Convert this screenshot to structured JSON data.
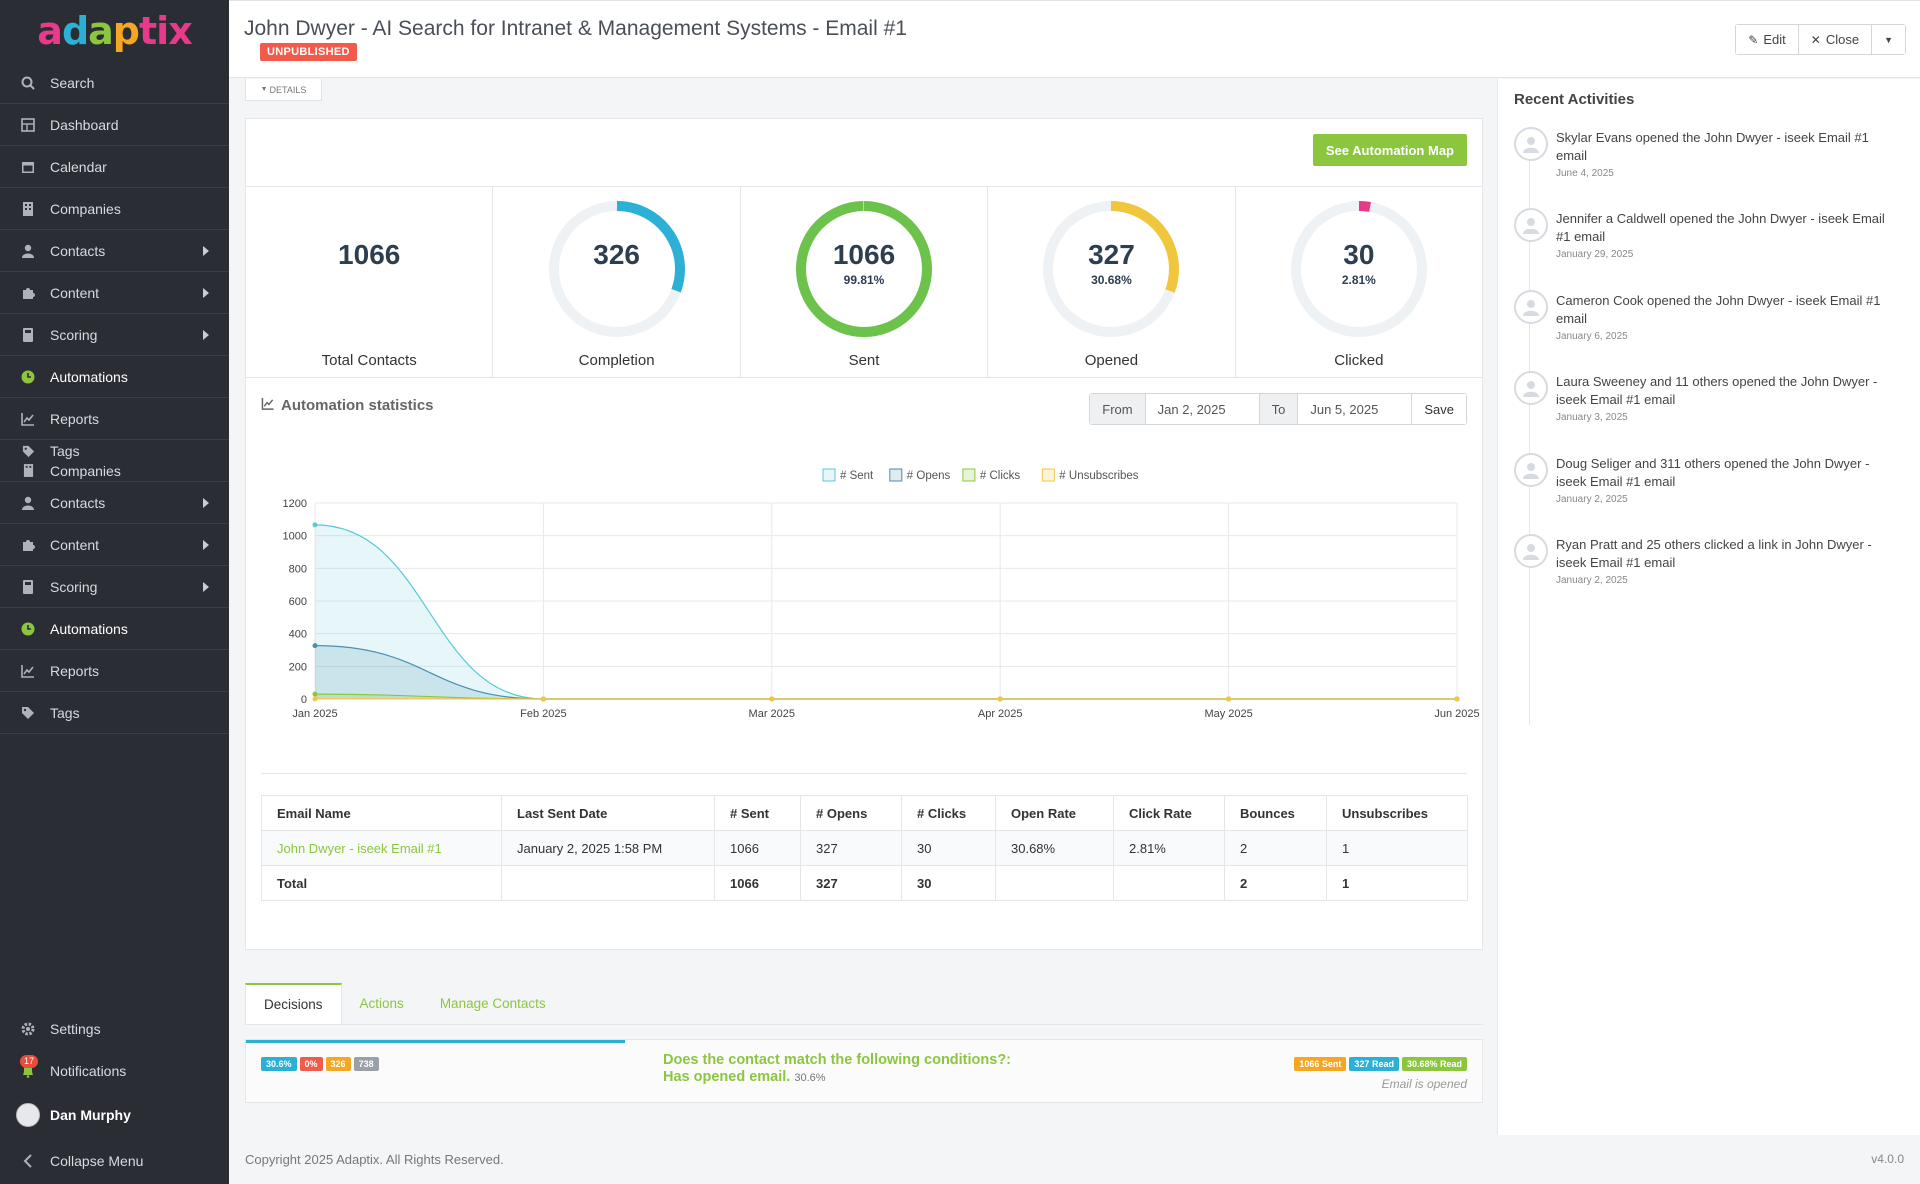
{
  "brand": {
    "logo_text": "adaptix"
  },
  "sidebar": {
    "items": [
      {
        "label": "Search",
        "icon": "search-icon"
      },
      {
        "label": "Dashboard",
        "icon": "dashboard-icon"
      },
      {
        "label": "Calendar",
        "icon": "calendar-icon"
      },
      {
        "label": "Companies",
        "icon": "building-icon"
      },
      {
        "label": "Contacts",
        "icon": "user-icon"
      },
      {
        "label": "Content",
        "icon": "puzzle-icon"
      },
      {
        "label": "Scoring",
        "icon": "calculator-icon"
      },
      {
        "label": "Automations",
        "icon": "clock-icon"
      },
      {
        "label": "Reports",
        "icon": "chart-line-icon"
      },
      {
        "label": "Tags",
        "label2": "Companies",
        "icon": "tag-icon"
      },
      {
        "label": "Contacts",
        "icon": "user-icon"
      },
      {
        "label": "Content",
        "icon": "puzzle-icon"
      },
      {
        "label": "Scoring",
        "icon": "calculator-icon"
      },
      {
        "label": "Automations",
        "icon": "clock-icon"
      },
      {
        "label": "Reports",
        "icon": "chart-line-icon"
      },
      {
        "label": "Tags",
        "icon": "tag-icon"
      }
    ],
    "bottom": {
      "settings": "Settings",
      "notifications": "Notifications",
      "notifications_count": "17",
      "user": "Dan Murphy",
      "collapse": "Collapse Menu"
    }
  },
  "header": {
    "title": "John Dwyer - AI Search for Intranet & Management Systems - Email #1",
    "status": "UNPUBLISHED",
    "edit": "Edit",
    "close": "Close"
  },
  "details_tab": "DETAILS",
  "main": {
    "map_button": "See Automation Map",
    "stats": {
      "total": {
        "value": "1066",
        "label": "Total Contacts"
      },
      "completion": {
        "value": "326",
        "label": "Completion",
        "fraction": 0.306,
        "color": "#2cb0d6"
      },
      "sent": {
        "value": "1066",
        "pct": "99.81%",
        "label": "Sent",
        "fraction": 0.9981,
        "color": "#6cc24a"
      },
      "opened": {
        "value": "327",
        "pct": "30.68%",
        "label": "Opened",
        "fraction": 0.3068,
        "color": "#f0c73c"
      },
      "clicked": {
        "value": "30",
        "pct": "2.81%",
        "label": "Clicked",
        "fraction": 0.0281,
        "color": "#e9398b"
      }
    },
    "section_title": "Automation statistics",
    "date_range": {
      "from_label": "From",
      "from": "Jan 2, 2025",
      "to_label": "To",
      "to": "Jun 5, 2025",
      "save": "Save"
    }
  },
  "chart_data": {
    "type": "area",
    "categories": [
      "Jan 2025",
      "Feb 2025",
      "Mar 2025",
      "Apr 2025",
      "May 2025",
      "Jun 2025"
    ],
    "series": [
      {
        "name": "# Sent",
        "values": [
          1066,
          0,
          0,
          0,
          0,
          0
        ],
        "color": "#5bc8d6"
      },
      {
        "name": "# Opens",
        "values": [
          327,
          0,
          0,
          0,
          0,
          0
        ],
        "color": "#4a8fb0"
      },
      {
        "name": "# Clicks",
        "values": [
          30,
          0,
          0,
          0,
          0,
          0
        ],
        "color": "#8cc63f"
      },
      {
        "name": "# Unsubscribes",
        "values": [
          1,
          0,
          0,
          0,
          0,
          0
        ],
        "color": "#f5c542"
      }
    ],
    "yticks": [
      "0",
      "200",
      "400",
      "600",
      "800",
      "1000",
      "1200"
    ],
    "ylim": [
      0,
      1200
    ],
    "legend": "top"
  },
  "table": {
    "headers": [
      "Email Name",
      "Last Sent Date",
      "# Sent",
      "# Opens",
      "# Clicks",
      "Open Rate",
      "Click Rate",
      "Bounces",
      "Unsubscribes"
    ],
    "rows": [
      [
        "John Dwyer - iseek Email #1",
        "January 2, 2025 1:58 PM",
        "1066",
        "327",
        "30",
        "30.68%",
        "2.81%",
        "2",
        "1"
      ]
    ],
    "total": [
      "Total",
      "",
      "1066",
      "327",
      "30",
      "",
      "",
      "2",
      "1"
    ]
  },
  "tabs": [
    "Decisions",
    "Actions",
    "Manage Contacts"
  ],
  "decision": {
    "badges_left": [
      "30.6%",
      "0%",
      "326",
      "738"
    ],
    "line1": "Does the contact match the following conditions?:",
    "line2": "Has opened email.",
    "line2_pct": "30.6%",
    "badges_right": [
      "1066 Sent",
      "327 Read",
      "30.68% Read"
    ],
    "note": "Email is opened"
  },
  "recent": {
    "title": "Recent Activities",
    "items": [
      {
        "text": "Skylar Evans opened the John Dwyer - iseek Email #1 email",
        "date": "June 4, 2025"
      },
      {
        "text": "Jennifer a Caldwell opened the John Dwyer - iseek Email #1 email",
        "date": "January 29, 2025"
      },
      {
        "text": "Cameron Cook opened the John Dwyer - iseek Email #1 email",
        "date": "January 6, 2025"
      },
      {
        "text": "Laura Sweeney and 11 others opened the John Dwyer - iseek Email #1 email",
        "date": "January 3, 2025"
      },
      {
        "text": "Doug Seliger and 311 others opened the John Dwyer - iseek Email #1 email",
        "date": "January 2, 2025"
      },
      {
        "text": "Ryan Pratt and 25 others clicked a link in John Dwyer - iseek Email #1 email",
        "date": "January 2, 2025"
      }
    ]
  },
  "footer": {
    "copyright": "Copyright 2025 Adaptix. All Rights Reserved.",
    "version": "v4.0.0"
  }
}
